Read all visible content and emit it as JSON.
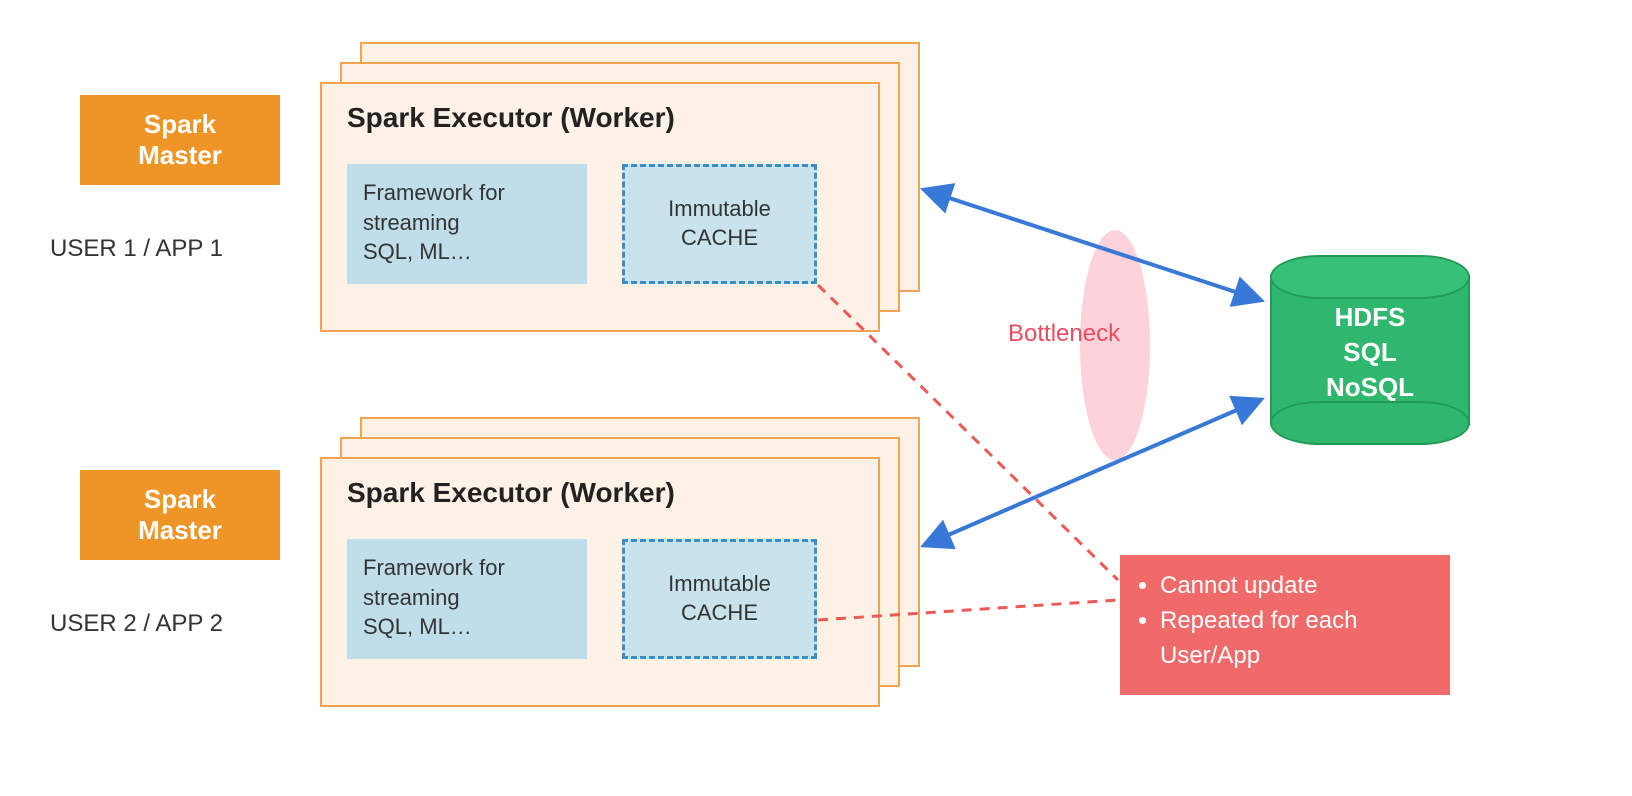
{
  "diagram": {
    "type": "architecture-diagram",
    "background_color": "#ffffff",
    "colors": {
      "spark_master_bg": "#ef9426",
      "spark_master_text": "#ffffff",
      "executor_bg": "#fef2e6",
      "executor_border": "#f1a351",
      "framework_bg": "#c0ddea",
      "cache_bg": "#c9e3ed",
      "cache_border": "#3b8fc6",
      "db_fill": "#2eb76d",
      "db_top": "#36c176",
      "db_border": "#249a59",
      "db_text": "#ffffff",
      "bottleneck_fill": "#fdd2db",
      "bottleneck_text": "#ec4d5e",
      "problem_bg": "#f16a6a",
      "problem_text": "#ffffff",
      "arrow_blue": "#3878d6",
      "dashed_red": "#ec5a56",
      "body_text": "#333333"
    },
    "font_sizes": {
      "title": 28,
      "label": 24,
      "body": 22,
      "db": 26
    }
  },
  "spark_master_1": {
    "label": "Spark\nMaster"
  },
  "spark_master_2": {
    "label": "Spark\nMaster"
  },
  "user1_label": "USER 1 / APP 1",
  "user2_label": "USER 2 / APP 2",
  "executor": {
    "title": "Spark Executor (Worker)",
    "framework_text": "Framework for streaming\nSQL, ML…",
    "cache_text": "Immutable\nCACHE"
  },
  "bottleneck_label": "Bottleneck",
  "database": {
    "line1": "HDFS",
    "line2": "SQL",
    "line3": "NoSQL"
  },
  "problems": {
    "item1": "Cannot update",
    "item2": "Repeated for each User/App"
  }
}
